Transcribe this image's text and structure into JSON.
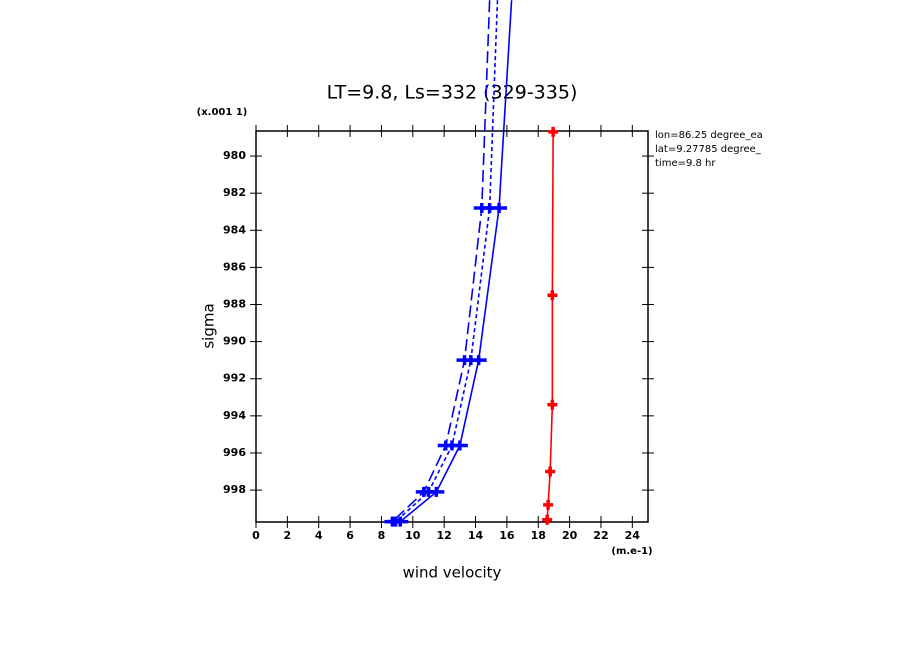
{
  "chart_data": {
    "type": "line",
    "title": "LT=9.8, Ls=332 (329-335)",
    "x_label": "wind velocity",
    "y_label": "sigma",
    "x_units": "(m.e-1)",
    "y_units": "(x.001 1)",
    "annotations": [
      "lon=86.25 degree_ea",
      "lat=9.27785 degree_",
      "time=9.8 hr"
    ],
    "xlim": [
      0,
      25
    ],
    "xticks": [
      0,
      2,
      4,
      6,
      8,
      10,
      12,
      14,
      16,
      18,
      20,
      22,
      24
    ],
    "ylim": [
      978.65,
      999.72
    ],
    "yticks": [
      980,
      982,
      984,
      986,
      988,
      990,
      992,
      994,
      996,
      998
    ],
    "y_inverted": true,
    "series": [
      {
        "color": "#0000ff",
        "dash": "solid",
        "markers": [
          false,
          true,
          true,
          true,
          true,
          true
        ],
        "x": [
          16.3,
          15.5,
          14.2,
          13.0,
          11.5,
          9.2
        ],
        "y": [
          971.6,
          982.8,
          991.0,
          995.6,
          998.1,
          999.7
        ]
      },
      {
        "color": "#0000ff",
        "dash": "short",
        "markers": [
          false,
          true,
          true,
          true,
          true,
          true
        ],
        "x": [
          15.4,
          14.9,
          13.7,
          12.5,
          11.0,
          8.9
        ],
        "y": [
          971.6,
          982.8,
          991.0,
          995.6,
          998.1,
          999.7
        ]
      },
      {
        "color": "#0000ff",
        "dash": "long",
        "markers": [
          false,
          true,
          true,
          true,
          true,
          true
        ],
        "x": [
          14.9,
          14.4,
          13.3,
          12.1,
          10.7,
          8.7
        ],
        "y": [
          971.6,
          982.8,
          991.0,
          995.6,
          998.1,
          999.7
        ]
      },
      {
        "color": "#ff0000",
        "dash": "solid",
        "markers": [
          true,
          true,
          true,
          true,
          true,
          true
        ],
        "x": [
          18.95,
          18.9,
          18.9,
          18.76,
          18.63,
          18.57
        ],
        "y": [
          978.7,
          987.5,
          993.4,
          997.0,
          998.8,
          999.6
        ]
      }
    ]
  }
}
